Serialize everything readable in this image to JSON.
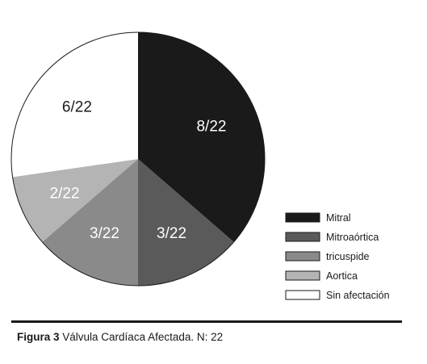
{
  "chart_data": {
    "type": "pie",
    "start_angle_deg": 0,
    "direction": "clockwise",
    "slices": [
      {
        "name": "Mitral",
        "value": 8,
        "label": "8/22",
        "color": "#1a1a1a",
        "label_color": "#ffffff"
      },
      {
        "name": "Mitroaórtica",
        "value": 3,
        "label": "3/22",
        "color": "#5a5a5a",
        "label_color": "#ffffff"
      },
      {
        "name": "tricuspide",
        "value": 3,
        "label": "3/22",
        "color": "#8a8a8a",
        "label_color": "#ffffff"
      },
      {
        "name": "Aortica",
        "value": 2,
        "label": "2/22",
        "color": "#b4b4b4",
        "label_color": "#ffffff"
      },
      {
        "name": "Sin afectación",
        "value": 6,
        "label": "6/22",
        "color": "#ffffff",
        "label_color": "#1a1a1a"
      }
    ],
    "total": 22,
    "legend_position": "right",
    "border_color": "#1a1a1a"
  },
  "caption": {
    "label": "Figura 3",
    "text": " Válvula Cardíaca Afectada. N: 22"
  }
}
